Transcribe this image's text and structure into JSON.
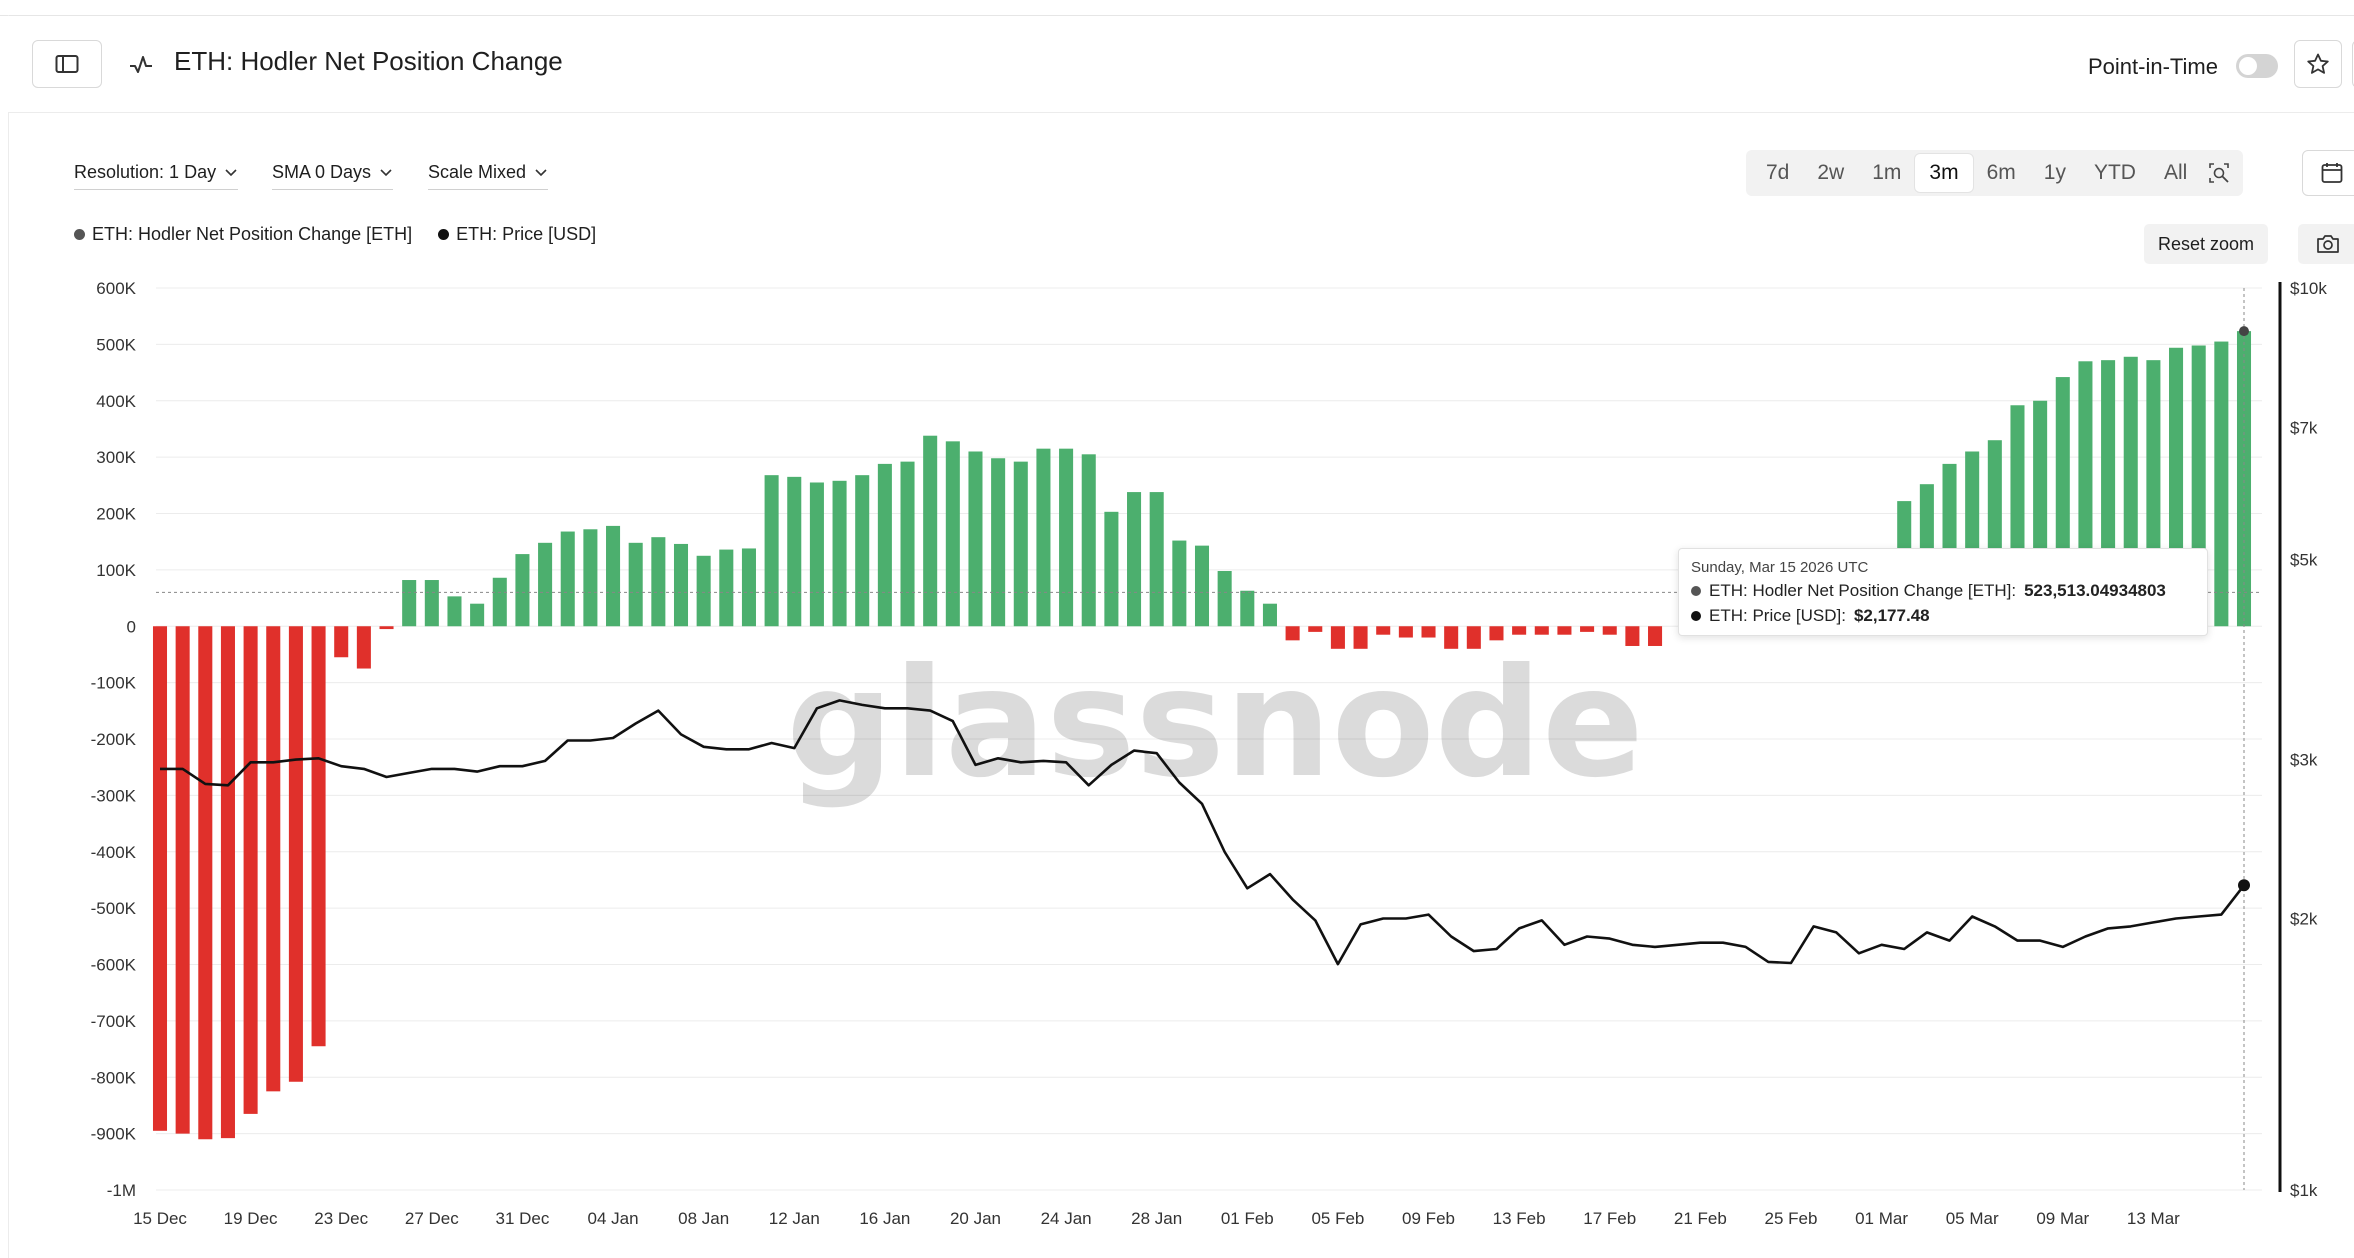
{
  "header": {
    "title": "ETH: Hodler Net Position Change",
    "point_in_time_label": "Point-in-Time",
    "point_in_time_on": false
  },
  "controls": {
    "resolution": "Resolution: 1 Day",
    "sma": "SMA 0 Days",
    "scale": "Scale Mixed",
    "ranges": [
      "7d",
      "2w",
      "1m",
      "3m",
      "6m",
      "1y",
      "YTD",
      "All"
    ],
    "active_range": "3m",
    "reset_zoom": "Reset zoom"
  },
  "icons": {
    "sidebar": "sidebar-toggle-icon",
    "metric": "pulse-icon",
    "star": "star-icon",
    "zoom": "zoom-select-icon",
    "calendar": "calendar-icon",
    "camera": "camera-icon",
    "dropdown": "chevron-down-icon"
  },
  "watermark": "glassnode",
  "tooltip": {
    "date": "Sunday, Mar 15 2026 UTC",
    "row1_label": "ETH: Hodler Net Position Change [ETH]:",
    "row1_value": "523,513.04934803",
    "row2_label": "ETH: Price [USD]:",
    "row2_value": "$2,177.48"
  },
  "colors": {
    "positive": "#4caf6e",
    "negative": "#e0302b",
    "price_line": "#111111",
    "grid": "#ececec"
  },
  "chart_data": {
    "type": "bar",
    "legend": [
      "ETH: Hodler Net Position Change [ETH]",
      "ETH: Price [USD]"
    ],
    "legend_placement": "top-left",
    "grid": true,
    "x_tick_labels": [
      "15 Dec",
      "19 Dec",
      "23 Dec",
      "27 Dec",
      "31 Dec",
      "04 Jan",
      "08 Jan",
      "12 Jan",
      "16 Jan",
      "20 Jan",
      "24 Jan",
      "28 Jan",
      "01 Feb",
      "05 Feb",
      "09 Feb",
      "13 Feb",
      "17 Feb",
      "21 Feb",
      "25 Feb",
      "01 Mar",
      "05 Mar",
      "09 Mar",
      "13 Mar"
    ],
    "x_range": [
      "2025-12-15",
      "2026-03-15"
    ],
    "y_left": {
      "ylim": [
        -1000000,
        600000
      ],
      "ticks": [
        600000,
        500000,
        400000,
        300000,
        200000,
        100000,
        0,
        -100000,
        -200000,
        -300000,
        -400000,
        -500000,
        -600000,
        -700000,
        -800000,
        -900000,
        -1000000
      ],
      "tick_labels": [
        "600K",
        "500K",
        "400K",
        "300K",
        "200K",
        "100K",
        "0",
        "-100K",
        "-200K",
        "-300K",
        "-400K",
        "-500K",
        "-600K",
        "-700K",
        "-800K",
        "-900K",
        "-1M"
      ]
    },
    "y_right": {
      "scale": "log",
      "ylim": [
        1000,
        10000
      ],
      "ticks": [
        10000,
        7000,
        5000,
        3000,
        2000,
        1000
      ],
      "tick_labels": [
        "$10k",
        "$7k",
        "$5k",
        "$3k",
        "$2k",
        "$1k"
      ]
    },
    "series": [
      {
        "name": "ETH: Hodler Net Position Change [ETH]",
        "kind": "bar",
        "axis": "left",
        "values": [
          -895000,
          -900000,
          -910000,
          -908000,
          -865000,
          -825000,
          -808000,
          -745000,
          -55000,
          -75000,
          -5000,
          82000,
          82000,
          53000,
          40000,
          86000,
          128000,
          148000,
          168000,
          172000,
          178000,
          148000,
          158000,
          146000,
          125000,
          136000,
          138000,
          268000,
          265000,
          255000,
          258000,
          268000,
          288000,
          292000,
          338000,
          328000,
          310000,
          298000,
          292000,
          315000,
          315000,
          305000,
          203000,
          238000,
          238000,
          152000,
          143000,
          98000,
          63000,
          40000,
          -25000,
          -10000,
          -40000,
          -40000,
          -15000,
          -20000,
          -20000,
          -40000,
          -40000,
          -25000,
          -15000,
          -15000,
          -15000,
          -10000,
          -15000,
          -35000,
          -35000,
          null,
          null,
          null,
          null,
          null,
          null,
          null,
          null,
          null,
          null,
          222000,
          252000,
          288000,
          310000,
          330000,
          392000,
          400000,
          442000,
          470000,
          472000,
          478000,
          472000,
          494000,
          498000,
          505000,
          523513
        ]
      },
      {
        "name": "ETH: Price [USD]",
        "kind": "line",
        "axis": "right",
        "values": [
          2930,
          2930,
          2820,
          2810,
          2980,
          2980,
          3000,
          3010,
          2950,
          2930,
          2870,
          2900,
          2930,
          2930,
          2910,
          2950,
          2950,
          2990,
          3150,
          3150,
          3170,
          3290,
          3400,
          3200,
          3100,
          3080,
          3080,
          3130,
          3090,
          3420,
          3490,
          3450,
          3420,
          3420,
          3400,
          3310,
          2960,
          3010,
          2980,
          2990,
          2980,
          2810,
          2960,
          3070,
          3050,
          2830,
          2680,
          2370,
          2160,
          2240,
          2100,
          1990,
          1780,
          1970,
          2000,
          2000,
          2020,
          1910,
          1840,
          1850,
          1950,
          1990,
          1870,
          1910,
          1900,
          1870,
          1860,
          1870,
          1880,
          1880,
          1860,
          1790,
          1785,
          1960,
          1930,
          1830,
          1870,
          1850,
          1930,
          1890,
          2010,
          1960,
          1890,
          1890,
          1860,
          1910,
          1950,
          1960,
          1980,
          2000,
          2010,
          2020,
          2177
        ]
      }
    ]
  }
}
